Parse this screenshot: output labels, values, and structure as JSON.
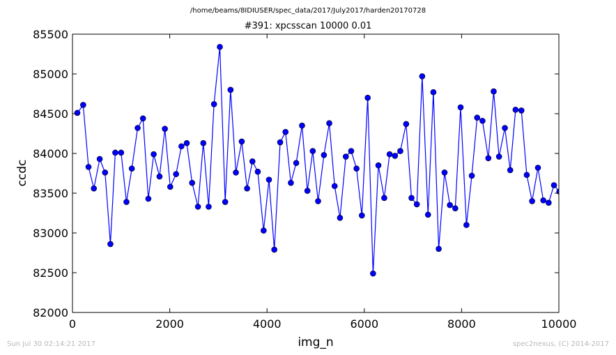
{
  "path_title": "/home/beams/8IDIUSER/spec_data/2017/July2017/harden20170728",
  "footer_left": "Sun Jul 30 02:14:21 2017",
  "footer_right": "spec2nexus, (C) 2014-2017",
  "chart_data": {
    "type": "line",
    "title": "#391: xpcsscan 10000 0.01",
    "xlabel": "img_n",
    "ylabel": "ccdc",
    "xlim": [
      0,
      10000
    ],
    "ylim": [
      82000,
      85500
    ],
    "xticks": [
      "0",
      "2000",
      "4000",
      "6000",
      "8000",
      "10000"
    ],
    "yticks": [
      "82000",
      "82500",
      "83000",
      "83500",
      "84000",
      "84500",
      "85000",
      "85500"
    ],
    "grid": false,
    "legend": "none",
    "line_color": "#0000ff",
    "marker": "circle",
    "marker_color": "#0000ff",
    "series": [
      {
        "x": [
          100,
          220,
          330,
          440,
          560,
          670,
          780,
          880,
          1000,
          1110,
          1220,
          1340,
          1450,
          1560,
          1670,
          1790,
          1900,
          2010,
          2130,
          2240,
          2350,
          2460,
          2580,
          2690,
          2800,
          2910,
          3030,
          3140,
          3250,
          3360,
          3480,
          3590,
          3700,
          3810,
          3930,
          4040,
          4150,
          4270,
          4380,
          4490,
          4600,
          4720,
          4830,
          4940,
          5050,
          5170,
          5280,
          5390,
          5500,
          5620,
          5730,
          5840,
          5950,
          6070,
          6180,
          6290,
          6410,
          6520,
          6630,
          6740,
          6860,
          6970,
          7080,
          7190,
          7310,
          7420,
          7530,
          7650,
          7760,
          7870,
          7980,
          8100,
          8210,
          8320,
          8430,
          8550,
          8660,
          8770,
          8890,
          9000,
          9110,
          9230,
          9340,
          9450,
          9570,
          9680,
          9790,
          9900,
          10010
        ],
        "y": [
          84510,
          84610,
          83830,
          83560,
          83930,
          83760,
          82860,
          84010,
          84010,
          83390,
          83810,
          84320,
          84440,
          83430,
          83990,
          83710,
          84310,
          83580,
          83740,
          84090,
          84130,
          83630,
          83330,
          84130,
          83330,
          84620,
          85340,
          83390,
          84800,
          83760,
          84150,
          83560,
          83900,
          83770,
          83030,
          83670,
          82790,
          84140,
          84270,
          83630,
          83880,
          84350,
          83530,
          84030,
          83400,
          83980,
          84380,
          83590,
          83190,
          83960,
          84030,
          83810,
          83220,
          84700,
          82490,
          83850,
          83440,
          83990,
          83970,
          84030,
          84370,
          83440,
          83360,
          84970,
          83230,
          84770,
          82800,
          83760,
          83350,
          83310,
          84580,
          83100,
          83720,
          84450,
          84410,
          83940,
          84780,
          83960,
          84320,
          83790,
          84550,
          84540,
          83730,
          83400,
          83820,
          83410,
          83380,
          83600,
          83520
        ]
      }
    ]
  }
}
